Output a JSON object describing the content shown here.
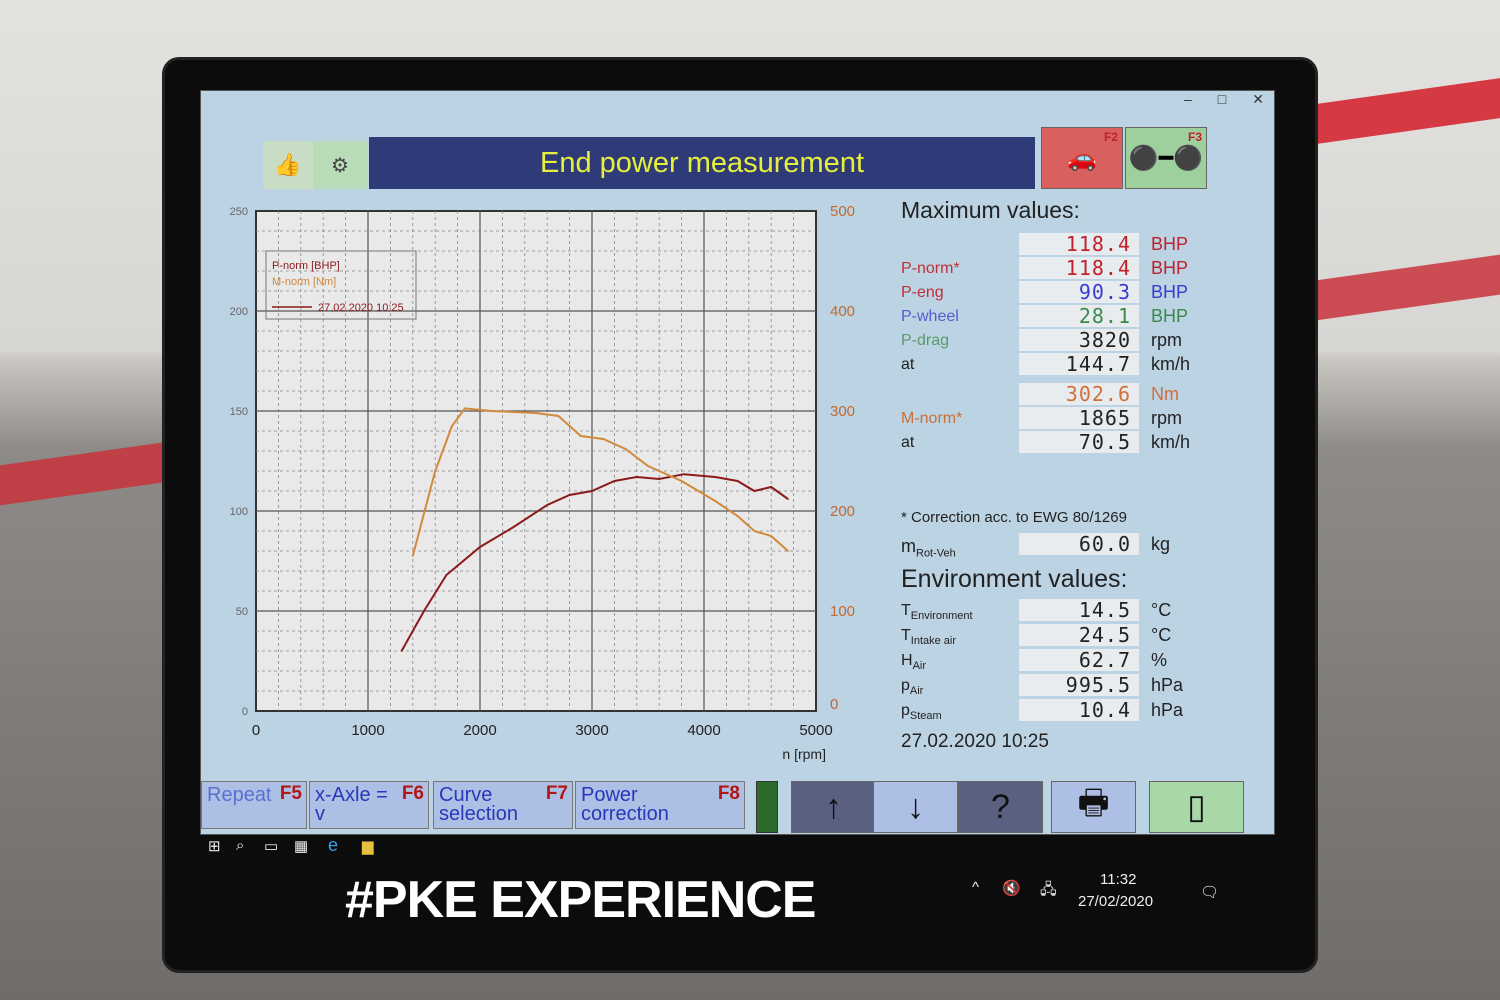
{
  "window": {
    "minimize": "–",
    "maximize": "□",
    "close": "✕"
  },
  "header": {
    "title": "End power measurement",
    "f2_key": "F2",
    "f3_key": "F3",
    "f2_icon": "car-on-dyno-icon",
    "f3_icon": "rollers-icon"
  },
  "chart_data": {
    "type": "line",
    "xlabel": "n [rpm]",
    "xlim": [
      0,
      5000
    ],
    "x_ticks": [
      "0",
      "1000",
      "2000",
      "3000",
      "4000",
      "5000"
    ],
    "y_left_lim": [
      0,
      250
    ],
    "y_left_ticks": [
      "0",
      "50",
      "100",
      "150",
      "200",
      "250"
    ],
    "y_right_lim": [
      0,
      500
    ],
    "y_right_ticks": [
      "0",
      "100",
      "200",
      "300",
      "400",
      "500"
    ],
    "grid": true,
    "legend_position": "top-left",
    "legend_date": "27.02.2020 10:25",
    "series": [
      {
        "name": "P-norm [BHP]",
        "axis": "left",
        "color": "#8b1a1a",
        "x": [
          1300,
          1500,
          1700,
          2000,
          2300,
          2600,
          2800,
          3000,
          3200,
          3400,
          3600,
          3820,
          4100,
          4300,
          4450,
          4600,
          4750
        ],
        "y": [
          30,
          50,
          68,
          82,
          92,
          103,
          108,
          110,
          115,
          117,
          116,
          118.4,
          117,
          115,
          110,
          112,
          106
        ]
      },
      {
        "name": "M-norm [Nm]",
        "axis": "right",
        "color": "#d08a3a",
        "x": [
          1400,
          1600,
          1750,
          1865,
          2100,
          2500,
          2700,
          2900,
          3100,
          3300,
          3500,
          3800,
          4100,
          4300,
          4450,
          4600,
          4750
        ],
        "y": [
          155,
          240,
          285,
          302.6,
          300,
          298,
          295,
          275,
          272,
          262,
          245,
          230,
          210,
          195,
          180,
          175,
          160
        ]
      }
    ]
  },
  "max": {
    "title": "Maximum values:",
    "rows": [
      {
        "label": "",
        "value": "118.4",
        "unit": "BHP",
        "color": "#c0202a"
      },
      {
        "label": "P-norm*",
        "value": "118.4",
        "unit": "BHP",
        "color": "#c0202a"
      },
      {
        "label": "P-eng",
        "value": "90.3",
        "unit": "BHP",
        "color": "#3a3ad0"
      },
      {
        "label": "P-wheel",
        "value": "28.1",
        "unit": "BHP",
        "color": "#3c8a4a"
      },
      {
        "label": "P-drag",
        "value": "3820",
        "unit": "rpm",
        "color": "#222222"
      },
      {
        "label": "at",
        "value": "144.7",
        "unit": "km/h",
        "color": "#222222"
      }
    ],
    "torque_rows": [
      {
        "label": "",
        "value": "302.6",
        "unit": "Nm",
        "color": "#d0703a"
      },
      {
        "label": "M-norm*",
        "value": "1865",
        "unit": "rpm",
        "color": "#222222"
      },
      {
        "label": "at",
        "value": "70.5",
        "unit": "km/h",
        "color": "#222222"
      }
    ],
    "label_colors": {
      "P-norm": "#c0303a",
      "P-eng": "#c0303a",
      "P-wheel": "#5a5ad0",
      "P-drag": "#5a9a6a",
      "M-norm": "#c8703a"
    },
    "correction_note": "* Correction acc. to EWG 80/1269",
    "mass": {
      "label": "m",
      "sub": "Rot-Veh",
      "value": "60.0",
      "unit": "kg"
    }
  },
  "env": {
    "title": "Environment values:",
    "rows": [
      {
        "label": "T",
        "sub": "Environment",
        "value": "14.5",
        "unit": "°C"
      },
      {
        "label": "T",
        "sub": "Intake air",
        "value": "24.5",
        "unit": "°C"
      },
      {
        "label": "H",
        "sub": "Air",
        "value": "62.7",
        "unit": "%"
      },
      {
        "label": "p",
        "sub": "Air",
        "value": "995.5",
        "unit": "hPa"
      },
      {
        "label": "p",
        "sub": "Steam",
        "value": "10.4",
        "unit": "hPa"
      }
    ]
  },
  "timestamp": "27.02.2020  10:25",
  "buttons": [
    {
      "label": "Repeat",
      "key": "F5"
    },
    {
      "label": "x-Axle = v",
      "key": "F6"
    },
    {
      "label": "Curve selection",
      "key": "F7"
    },
    {
      "label": "Power correction",
      "key": "F8"
    }
  ],
  "icon_buttons": [
    "↑",
    "↓",
    "?",
    "🖶",
    "▯"
  ],
  "taskbar": {
    "time": "11:32",
    "date": "27/02/2020"
  },
  "bezel_logo": "#PKE EXPERIENCE"
}
